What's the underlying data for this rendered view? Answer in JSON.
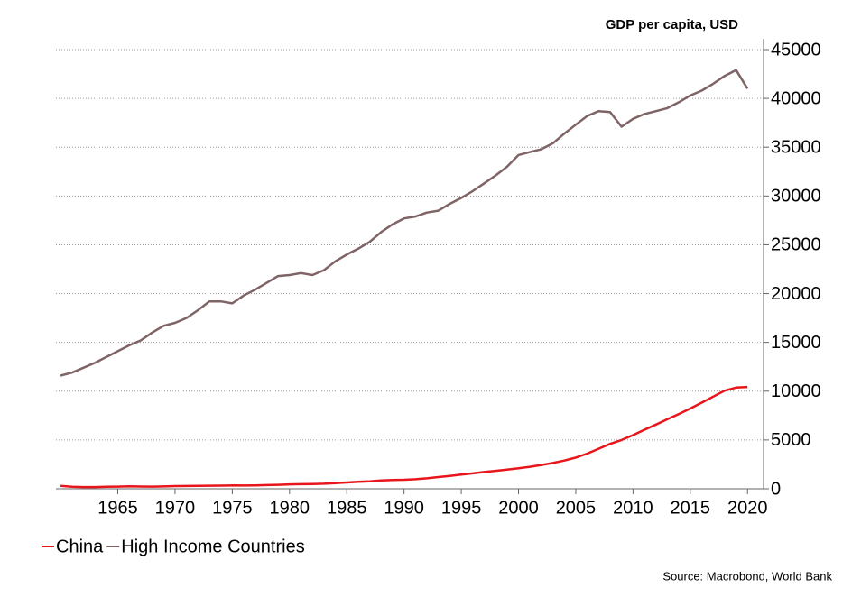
{
  "chart_data": {
    "type": "line",
    "title": "GDP per capita, USD",
    "source": "Source: Macrobond, World Bank",
    "x": [
      1960,
      1961,
      1962,
      1963,
      1964,
      1965,
      1966,
      1967,
      1968,
      1969,
      1970,
      1971,
      1972,
      1973,
      1974,
      1975,
      1976,
      1977,
      1978,
      1979,
      1980,
      1981,
      1982,
      1983,
      1984,
      1985,
      1986,
      1987,
      1988,
      1989,
      1990,
      1991,
      1992,
      1993,
      1994,
      1995,
      1996,
      1997,
      1998,
      1999,
      2000,
      2001,
      2002,
      2003,
      2004,
      2005,
      2006,
      2007,
      2008,
      2009,
      2010,
      2011,
      2012,
      2013,
      2014,
      2015,
      2016,
      2017,
      2018,
      2019,
      2020
    ],
    "series": [
      {
        "name": "China",
        "color": "#e8161b",
        "values": [
          300,
          200,
          180,
          180,
          200,
          220,
          250,
          230,
          220,
          240,
          280,
          290,
          300,
          310,
          320,
          340,
          330,
          350,
          380,
          410,
          450,
          470,
          490,
          520,
          580,
          650,
          710,
          770,
          850,
          900,
          920,
          980,
          1070,
          1200,
          1320,
          1460,
          1580,
          1720,
          1840,
          1970,
          2100,
          2250,
          2440,
          2640,
          2890,
          3200,
          3600,
          4100,
          4600,
          5000,
          5500,
          6050,
          6580,
          7120,
          7660,
          8220,
          8820,
          9440,
          10050,
          10370,
          10430
        ]
      },
      {
        "name": "High Income Countries",
        "color": "#7f6466",
        "values": [
          11600,
          11900,
          12400,
          12900,
          13500,
          14100,
          14700,
          15200,
          16000,
          16700,
          17000,
          17500,
          18300,
          19200,
          19200,
          19000,
          19800,
          20400,
          21100,
          21800,
          21900,
          22100,
          21900,
          22400,
          23300,
          24000,
          24600,
          25300,
          26300,
          27100,
          27700,
          27900,
          28300,
          28500,
          29200,
          29800,
          30500,
          31300,
          32100,
          33000,
          34200,
          34500,
          34800,
          35400,
          36400,
          37300,
          38200,
          38700,
          38600,
          37100,
          37900,
          38400,
          38700,
          39000,
          39600,
          40300,
          40800,
          41500,
          42300,
          42900,
          41000
        ]
      }
    ],
    "xlim": [
      1959.6,
      2021.4
    ],
    "xticks": [
      1965,
      1970,
      1975,
      1980,
      1985,
      1990,
      1995,
      2000,
      2005,
      2010,
      2015,
      2020
    ],
    "ylim": [
      0,
      45000
    ],
    "yticks": [
      0,
      5000,
      10000,
      15000,
      20000,
      25000,
      30000,
      35000,
      40000,
      45000
    ],
    "grid": true,
    "legend": "bottom-left"
  }
}
